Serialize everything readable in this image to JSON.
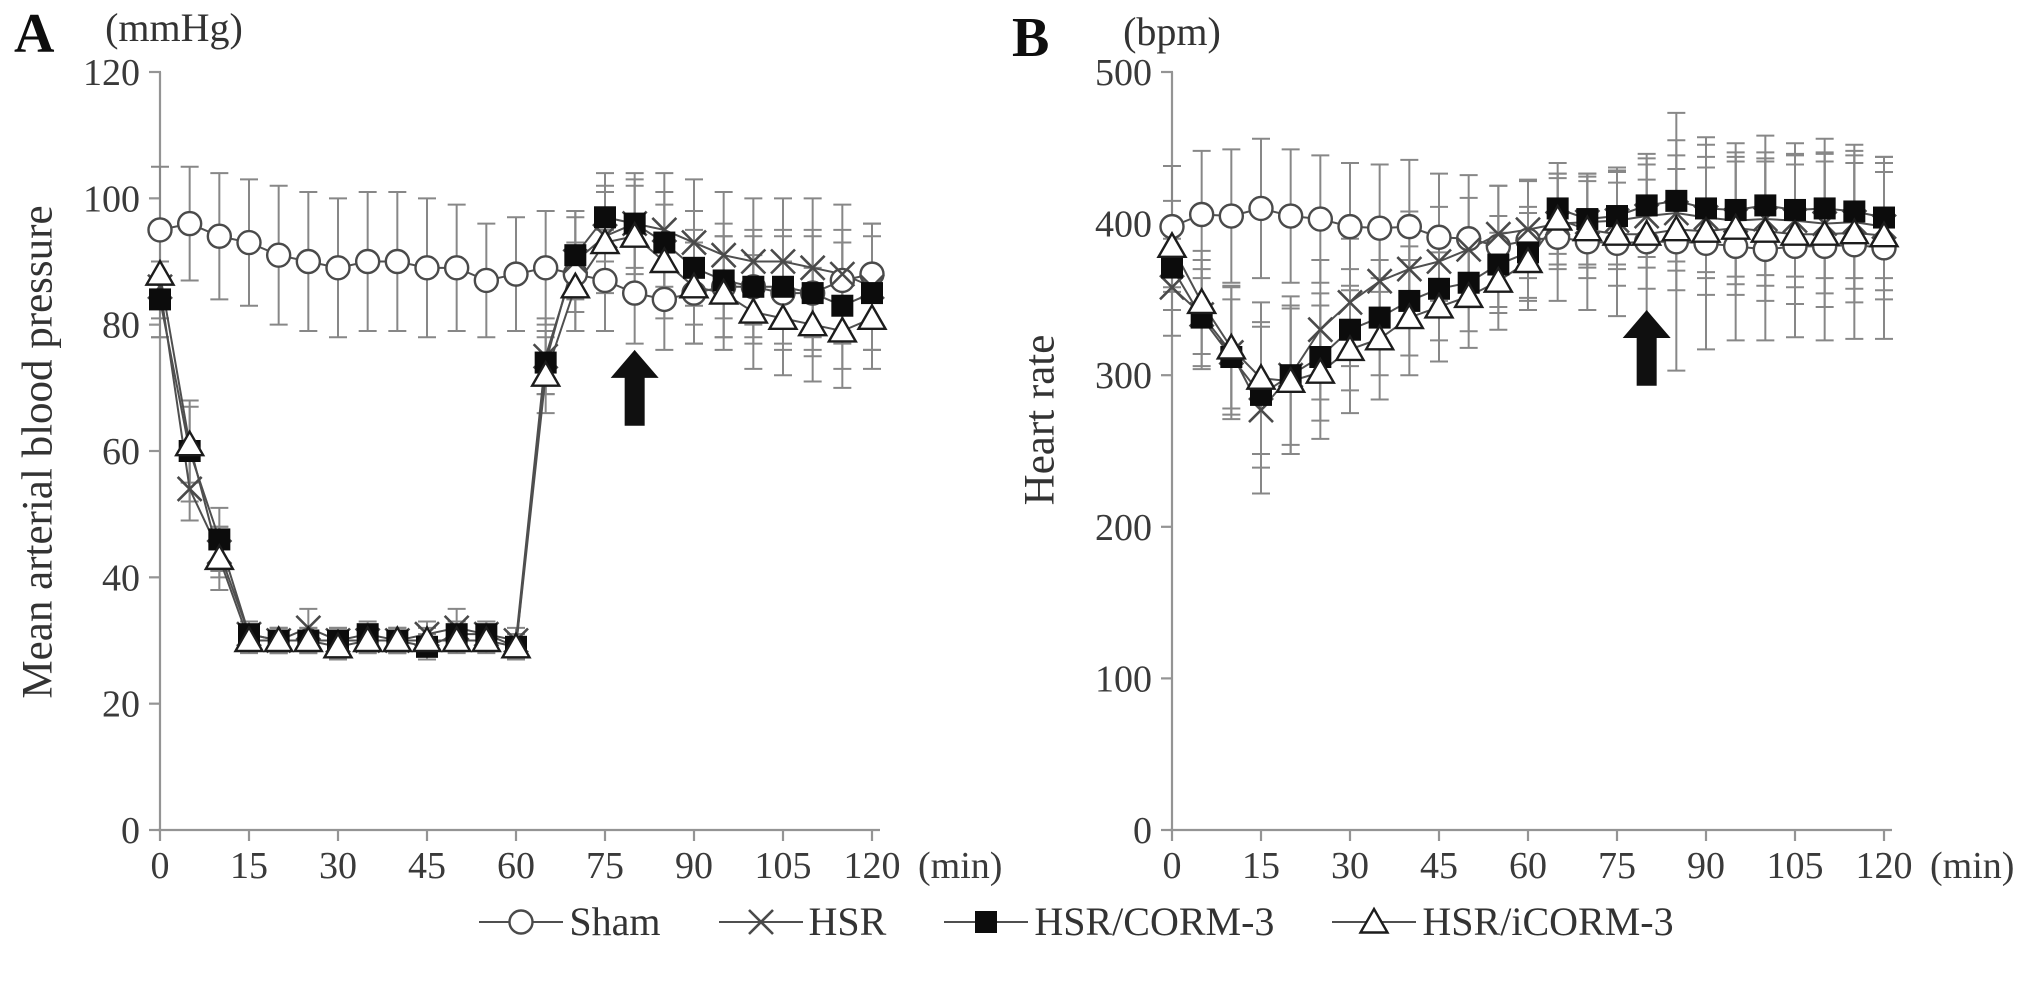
{
  "colors": {
    "background": "#ffffff",
    "axis": "#949494",
    "error_bar": "#878787",
    "series_line": "#4f4f4f",
    "marker_stroke": "#4a4a4a",
    "marker_dark": "#0c0c0c",
    "marker_light": "#ffffff",
    "text": "#3a3a3a",
    "arrow": "#101010"
  },
  "chart_data": [
    {
      "type": "line",
      "panel_letter": "A",
      "y_unit_label": "(mmHg)",
      "x_unit_label": "(min)",
      "ylabel": "Mean arterial blood pressure",
      "xlabel": "",
      "grid": false,
      "legend_position": "bottom-center",
      "ylim": [
        0,
        120
      ],
      "xlim": [
        0,
        120
      ],
      "yticks": [
        0,
        20,
        40,
        60,
        80,
        100,
        120
      ],
      "xticks": [
        0,
        15,
        30,
        45,
        60,
        75,
        90,
        105,
        120
      ],
      "x": [
        0,
        5,
        10,
        15,
        20,
        25,
        30,
        35,
        40,
        45,
        50,
        55,
        60,
        65,
        70,
        75,
        80,
        85,
        90,
        95,
        100,
        105,
        110,
        115,
        120
      ],
      "series": [
        {
          "name": "Sham",
          "marker": "circle",
          "values": [
            95,
            96,
            94,
            93,
            91,
            90,
            89,
            90,
            90,
            89,
            89,
            87,
            88,
            89,
            88,
            87,
            85,
            84,
            85,
            86,
            86,
            85,
            85,
            87,
            88
          ],
          "err": [
            10,
            9,
            10,
            10,
            11,
            11,
            11,
            11,
            11,
            11,
            10,
            9,
            9,
            9,
            9,
            8,
            8,
            8,
            8,
            8,
            8,
            9,
            9,
            8,
            8
          ]
        },
        {
          "name": "HSR",
          "marker": "x",
          "values": [
            86,
            54,
            44,
            31,
            30,
            32,
            30,
            30,
            30,
            31,
            32,
            31,
            30,
            75,
            90,
            94,
            96,
            95,
            93,
            91,
            90,
            90,
            89,
            88,
            86
          ],
          "err": [
            8,
            5,
            4,
            2,
            2,
            3,
            2,
            2,
            2,
            2,
            3,
            2,
            2,
            6,
            8,
            8,
            8,
            9,
            10,
            10,
            10,
            10,
            11,
            11,
            10
          ]
        },
        {
          "name": "HSR/CORM-3",
          "marker": "square",
          "values": [
            84,
            60,
            46,
            31,
            30,
            30,
            30,
            31,
            30,
            29,
            31,
            31,
            29,
            74,
            91,
            97,
            96,
            93,
            89,
            87,
            86,
            86,
            85,
            83,
            85
          ],
          "err": [
            6,
            8,
            5,
            2,
            2,
            2,
            2,
            2,
            2,
            2,
            2,
            2,
            2,
            5,
            7,
            7,
            7,
            8,
            9,
            9,
            9,
            9,
            10,
            10,
            9
          ]
        },
        {
          "name": "HSR/iCORM-3",
          "marker": "triangle",
          "values": [
            88,
            61,
            43,
            30,
            30,
            30,
            29,
            30,
            30,
            30,
            30,
            30,
            29,
            72,
            86,
            93,
            94,
            90,
            86,
            85,
            82,
            81,
            80,
            79,
            81
          ],
          "err": [
            7,
            6,
            5,
            2,
            2,
            2,
            2,
            2,
            2,
            2,
            2,
            2,
            2,
            6,
            7,
            8,
            8,
            9,
            9,
            9,
            9,
            9,
            9,
            9,
            8
          ]
        }
      ],
      "annotation_arrow": {
        "x": 80,
        "y_base": 64,
        "y_tip": 76
      }
    },
    {
      "type": "line",
      "panel_letter": "B",
      "y_unit_label": "(bpm)",
      "x_unit_label": "(min)",
      "ylabel": "Heart rate",
      "xlabel": "",
      "grid": false,
      "legend_position": "bottom-center",
      "ylim": [
        0,
        500
      ],
      "xlim": [
        0,
        120
      ],
      "yticks": [
        0,
        100,
        200,
        300,
        400,
        500
      ],
      "xticks": [
        0,
        15,
        30,
        45,
        60,
        75,
        90,
        105,
        120
      ],
      "x": [
        0,
        5,
        10,
        15,
        20,
        25,
        30,
        35,
        40,
        45,
        50,
        55,
        60,
        65,
        70,
        75,
        80,
        85,
        90,
        95,
        100,
        105,
        110,
        115,
        120
      ],
      "series": [
        {
          "name": "Sham",
          "marker": "circle",
          "values": [
            398,
            406,
            405,
            410,
            405,
            403,
            398,
            397,
            398,
            391,
            390,
            385,
            389,
            391,
            388,
            387,
            388,
            388,
            387,
            385,
            383,
            385,
            385,
            386,
            384
          ],
          "err": [
            40,
            42,
            44,
            46,
            44,
            42,
            42,
            42,
            44,
            42,
            42,
            40,
            40,
            42,
            45,
            48,
            55,
            85,
            70,
            62,
            60,
            60,
            62,
            62,
            60
          ]
        },
        {
          "name": "HSR",
          "marker": "x",
          "values": [
            358,
            340,
            315,
            277,
            300,
            330,
            348,
            362,
            370,
            375,
            383,
            393,
            396,
            400,
            401,
            402,
            405,
            407,
            404,
            402,
            403,
            402,
            400,
            401,
            398
          ],
          "err": [
            32,
            36,
            44,
            55,
            52,
            46,
            42,
            40,
            38,
            36,
            34,
            32,
            32,
            30,
            30,
            32,
            34,
            38,
            40,
            42,
            44,
            44,
            46,
            44,
            42
          ]
        },
        {
          "name": "HSR/CORM-3",
          "marker": "square",
          "values": [
            371,
            338,
            312,
            287,
            300,
            312,
            330,
            338,
            349,
            357,
            361,
            373,
            381,
            410,
            403,
            405,
            412,
            415,
            410,
            409,
            412,
            409,
            410,
            408,
            404
          ],
          "err": [
            28,
            32,
            38,
            48,
            46,
            42,
            40,
            38,
            36,
            34,
            32,
            32,
            30,
            30,
            30,
            32,
            34,
            40,
            42,
            44,
            46,
            44,
            46,
            44,
            40
          ]
        },
        {
          "name": "HSR/iCORM-3",
          "marker": "triangle",
          "values": [
            385,
            348,
            318,
            298,
            296,
            302,
            317,
            324,
            338,
            345,
            352,
            362,
            375,
            403,
            396,
            393,
            393,
            396,
            395,
            397,
            395,
            393,
            393,
            394,
            392
          ],
          "err": [
            30,
            34,
            40,
            50,
            48,
            44,
            42,
            40,
            38,
            36,
            34,
            32,
            32,
            30,
            32,
            34,
            36,
            40,
            42,
            44,
            46,
            46,
            48,
            46,
            42
          ]
        }
      ],
      "annotation_arrow": {
        "x": 80,
        "y_base": 293,
        "y_tip": 343
      }
    }
  ]
}
